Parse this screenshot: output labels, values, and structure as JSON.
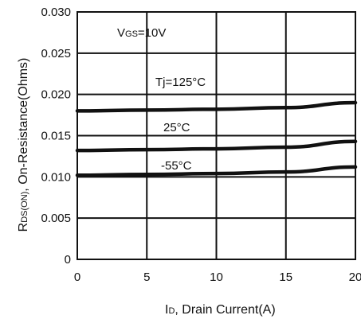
{
  "chart_data": {
    "type": "line",
    "x_label": {
      "main": "I",
      "sub": "D",
      "rest": ", Drain Current(A)"
    },
    "y_label": {
      "main": "R",
      "sub": "DS(ON)",
      "rest": ",  On-Resistance(Ohms)"
    },
    "xlim": [
      0,
      20
    ],
    "ylim": [
      0,
      0.03
    ],
    "x_ticks": [
      0,
      5,
      10,
      15,
      20
    ],
    "x_tick_labels": [
      "0",
      "5",
      "10",
      "15",
      "20"
    ],
    "y_ticks": [
      0,
      0.005,
      0.01,
      0.015,
      0.02,
      0.025,
      0.03
    ],
    "y_tick_labels": [
      "0",
      "0.005",
      "0.010",
      "0.015",
      "0.020",
      "0.025",
      "0.030"
    ],
    "grid": true,
    "condition": {
      "main": "V",
      "sub": "GS",
      "rest": "=10V"
    },
    "series": [
      {
        "name": "Tj=125°C",
        "x": [
          0,
          5,
          10,
          15,
          20
        ],
        "y": [
          0.018,
          0.0181,
          0.0182,
          0.0184,
          0.019
        ]
      },
      {
        "name": "25°C",
        "x": [
          0,
          5,
          10,
          15,
          20
        ],
        "y": [
          0.0132,
          0.0133,
          0.0134,
          0.0136,
          0.0143
        ]
      },
      {
        "name": "-55°C",
        "x": [
          0,
          5,
          10,
          15,
          20
        ],
        "y": [
          0.0102,
          0.0103,
          0.0104,
          0.0106,
          0.0112
        ]
      }
    ]
  }
}
